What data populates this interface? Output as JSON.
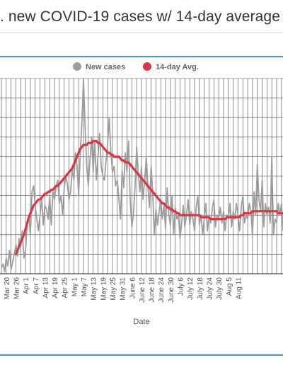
{
  "header": {
    "title": ". new COVID-19 cases w/ 14-day average"
  },
  "colors": {
    "accent_border": "#4a93c9",
    "new_cases": "#9e9e9e",
    "avg_14day": "#dc3545",
    "grid": "#444444"
  },
  "chart_data": {
    "type": "line",
    "xlabel": "Date",
    "ylabel": "",
    "legend_position": "top-center",
    "grid": true,
    "x_tick_labels": [
      "Mar 20",
      "Mar 26",
      "Apr 1",
      "Apr 7",
      "Apr 13",
      "Apr 19",
      "Apr 25",
      "May 1",
      "May 7",
      "May 13",
      "May 19",
      "May 25",
      "May 31",
      "June 6",
      "June 12",
      "June 18",
      "June 24",
      "June 30",
      "July 6",
      "July 12",
      "July 18",
      "July 24",
      "July 30",
      "Aug 5",
      "Aug 11"
    ],
    "x_start": "Mar 17",
    "y_range": [
      0,
      100
    ],
    "series": [
      {
        "name": "New cases",
        "color": "#9e9e9e",
        "values": [
          3,
          5,
          1,
          8,
          4,
          12,
          2,
          6,
          10,
          15,
          9,
          18,
          14,
          22,
          8,
          12,
          25,
          30,
          20,
          42,
          45,
          35,
          28,
          22,
          30,
          38,
          25,
          35,
          33,
          28,
          40,
          25,
          42,
          38,
          45,
          48,
          36,
          40,
          30,
          44,
          50,
          46,
          38,
          42,
          53,
          48,
          62,
          55,
          40,
          62,
          78,
          100,
          75,
          55,
          45,
          58,
          70,
          52,
          68,
          48,
          60,
          72,
          55,
          50,
          48,
          58,
          67,
          80,
          62,
          52,
          55,
          45,
          48,
          38,
          28,
          53,
          44,
          62,
          52,
          68,
          38,
          24,
          30,
          44,
          65,
          52,
          42,
          55,
          38,
          48,
          60,
          45,
          34,
          55,
          42,
          20,
          33,
          25,
          32,
          38,
          28,
          35,
          23,
          44,
          30,
          25,
          40,
          20,
          34,
          28,
          30,
          18,
          26,
          35,
          24,
          30,
          38,
          25,
          32,
          28,
          22,
          34,
          40,
          25,
          30,
          20,
          28,
          36,
          22,
          30,
          26,
          33,
          38,
          24,
          30,
          28,
          34,
          26,
          32,
          22,
          30,
          28,
          36,
          24,
          32,
          28,
          36,
          30,
          22,
          34,
          40,
          26,
          30,
          28,
          36,
          32,
          20,
          42,
          30,
          56,
          38,
          32,
          48,
          24,
          36,
          30,
          34,
          26,
          60,
          20,
          28,
          26,
          36,
          30,
          36,
          22,
          28,
          30,
          15,
          24,
          33,
          48,
          38,
          26,
          30,
          22,
          28,
          34,
          18,
          30,
          36,
          34,
          56,
          28,
          33
        ]
      },
      {
        "name": "14-day Avg.",
        "color": "#dc3545",
        "values": [
          null,
          null,
          null,
          null,
          null,
          null,
          null,
          null,
          null,
          10,
          12,
          14,
          16,
          18,
          20,
          23,
          26,
          29,
          31,
          33,
          35,
          36,
          37,
          38,
          38,
          39,
          40,
          41,
          41,
          42,
          42,
          43,
          43,
          44,
          45,
          45,
          46,
          47,
          48,
          49,
          50,
          51,
          52,
          53,
          54,
          56,
          58,
          60,
          62,
          64,
          65,
          66,
          66,
          66,
          67,
          67,
          67,
          68,
          68,
          68,
          67,
          67,
          66,
          65,
          64,
          63,
          62,
          62,
          61,
          61,
          60,
          60,
          60,
          60,
          59,
          58,
          58,
          57,
          57,
          57,
          56,
          55,
          54,
          53,
          52,
          51,
          50,
          49,
          48,
          47,
          46,
          45,
          44,
          43,
          42,
          41,
          40,
          39,
          38,
          37,
          36,
          36,
          35,
          34,
          34,
          33,
          33,
          32,
          32,
          31,
          31,
          30,
          30,
          30,
          30,
          30,
          30,
          30,
          30,
          30,
          30,
          30,
          30,
          30,
          29,
          29,
          29,
          29,
          29,
          29,
          28,
          28,
          28,
          28,
          28,
          28,
          28,
          28,
          28,
          28,
          29,
          29,
          29,
          29,
          29,
          29,
          29,
          29,
          29,
          30,
          30,
          31,
          31,
          31,
          31,
          31,
          32,
          32,
          32,
          32,
          32,
          32,
          32,
          32,
          32,
          32,
          32,
          32,
          32,
          32,
          32,
          32,
          31,
          31,
          31,
          31,
          31,
          31,
          30,
          30,
          30,
          30,
          30,
          30,
          30,
          30,
          30,
          30,
          30,
          30,
          30,
          29,
          29,
          29,
          29,
          29
        ]
      }
    ]
  }
}
